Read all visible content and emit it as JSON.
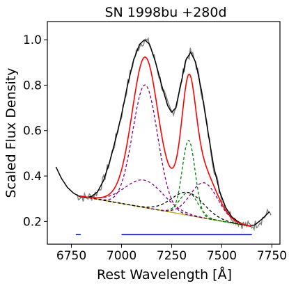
{
  "chart_data": {
    "type": "line",
    "title": "SN 1998bu  +280d",
    "xlabel": "Rest Wavelength [Å]",
    "ylabel": "Scaled Flux Density",
    "xlim": [
      6630,
      7790
    ],
    "ylim": [
      0.1,
      1.08
    ],
    "xticks": [
      6750,
      7000,
      7250,
      7500,
      7750
    ],
    "yticks": [
      0.2,
      0.4,
      0.6,
      0.8,
      1.0
    ],
    "xtick_labels": [
      "6750",
      "7000",
      "7250",
      "7500",
      "7750"
    ],
    "ytick_labels": [
      "0.2",
      "0.4",
      "0.6",
      "0.8",
      "1.0"
    ],
    "grid": false,
    "continuum": {
      "x": [
        6790,
        7650
      ],
      "y": [
        0.312,
        0.178
      ],
      "color": "#bcbd22"
    },
    "components": [
      {
        "center": 7118,
        "amplitude": 0.54,
        "sigma": 62,
        "color": "#800080"
      },
      {
        "center": 7112,
        "amplitude": 0.12,
        "sigma": 95,
        "color": "#800080"
      },
      {
        "center": 7335,
        "amplitude": 0.33,
        "sigma": 32,
        "color": "#008000"
      },
      {
        "center": 7335,
        "amplitude": 0.1,
        "sigma": 45,
        "color": "#008000"
      },
      {
        "center": 7412,
        "amplitude": 0.155,
        "sigma": 68,
        "color": "#800080"
      },
      {
        "center": 7330,
        "amplitude": 0.1,
        "sigma": 80,
        "color": "#000000"
      }
    ],
    "data_smoothed": {
      "color": "#000000",
      "points": [
        [
          6673,
          0.44
        ],
        [
          6700,
          0.39
        ],
        [
          6730,
          0.35
        ],
        [
          6760,
          0.325
        ],
        [
          6790,
          0.31
        ],
        [
          6820,
          0.305
        ],
        [
          6850,
          0.31
        ],
        [
          6880,
          0.33
        ],
        [
          6910,
          0.38
        ],
        [
          6940,
          0.46
        ],
        [
          6970,
          0.56
        ],
        [
          7000,
          0.67
        ],
        [
          7030,
          0.8
        ],
        [
          7060,
          0.91
        ],
        [
          7090,
          0.98
        ],
        [
          7115,
          1.0
        ],
        [
          7140,
          0.98
        ],
        [
          7170,
          0.9
        ],
        [
          7200,
          0.8
        ],
        [
          7230,
          0.71
        ],
        [
          7250,
          0.68
        ],
        [
          7270,
          0.7
        ],
        [
          7295,
          0.8
        ],
        [
          7320,
          0.91
        ],
        [
          7345,
          0.945
        ],
        [
          7370,
          0.9
        ],
        [
          7400,
          0.77
        ],
        [
          7430,
          0.6
        ],
        [
          7460,
          0.44
        ],
        [
          7490,
          0.33
        ],
        [
          7520,
          0.26
        ],
        [
          7550,
          0.22
        ],
        [
          7580,
          0.2
        ],
        [
          7610,
          0.185
        ],
        [
          7640,
          0.18
        ],
        [
          7665,
          0.185
        ],
        [
          7700,
          0.21
        ],
        [
          7740,
          0.245
        ]
      ]
    },
    "data_raw": {
      "color": "#808080",
      "x_start": 6773,
      "x_end": 7745,
      "step": 6
    },
    "fit_range_markers": {
      "color": "#0000ff",
      "y": 0.142,
      "segments": [
        [
          6772,
          6796
        ],
        [
          7000,
          7650
        ]
      ]
    },
    "fit_color": "#ff0000"
  }
}
